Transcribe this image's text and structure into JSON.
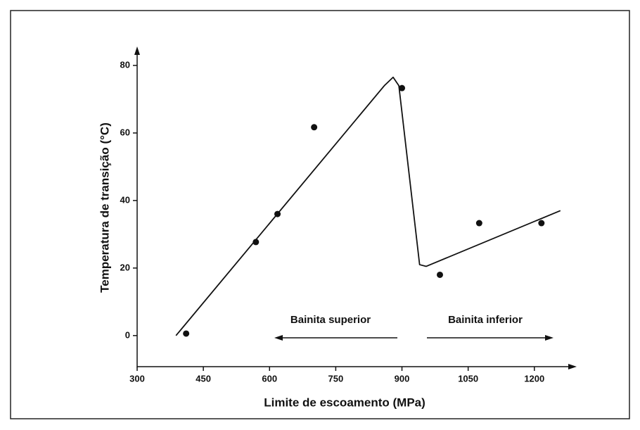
{
  "chart_data": {
    "type": "scatter",
    "xlabel": "Limite de escoamento (MPa)",
    "ylabel": "Temperatura de transição (°C)",
    "x": [
      411,
      569,
      618,
      701,
      900,
      986,
      1075,
      1216
    ],
    "y": [
      0.6,
      27.7,
      36,
      61.7,
      73.3,
      18,
      33.3,
      33.3
    ],
    "color": "#111111",
    "trend_line": {
      "x": [
        388,
        860,
        880,
        893,
        940,
        955,
        1259
      ],
      "y": [
        0,
        74,
        76.5,
        74,
        21,
        20.5,
        37
      ]
    },
    "xlim": [
      300,
      1280
    ],
    "ylim": [
      -9,
      85
    ],
    "xticks": [
      300,
      450,
      600,
      750,
      900,
      1050,
      1200
    ],
    "yticks": [
      0,
      20,
      40,
      60,
      80
    ],
    "annotations": [
      "Bainita superior",
      "Bainita inferior"
    ]
  }
}
